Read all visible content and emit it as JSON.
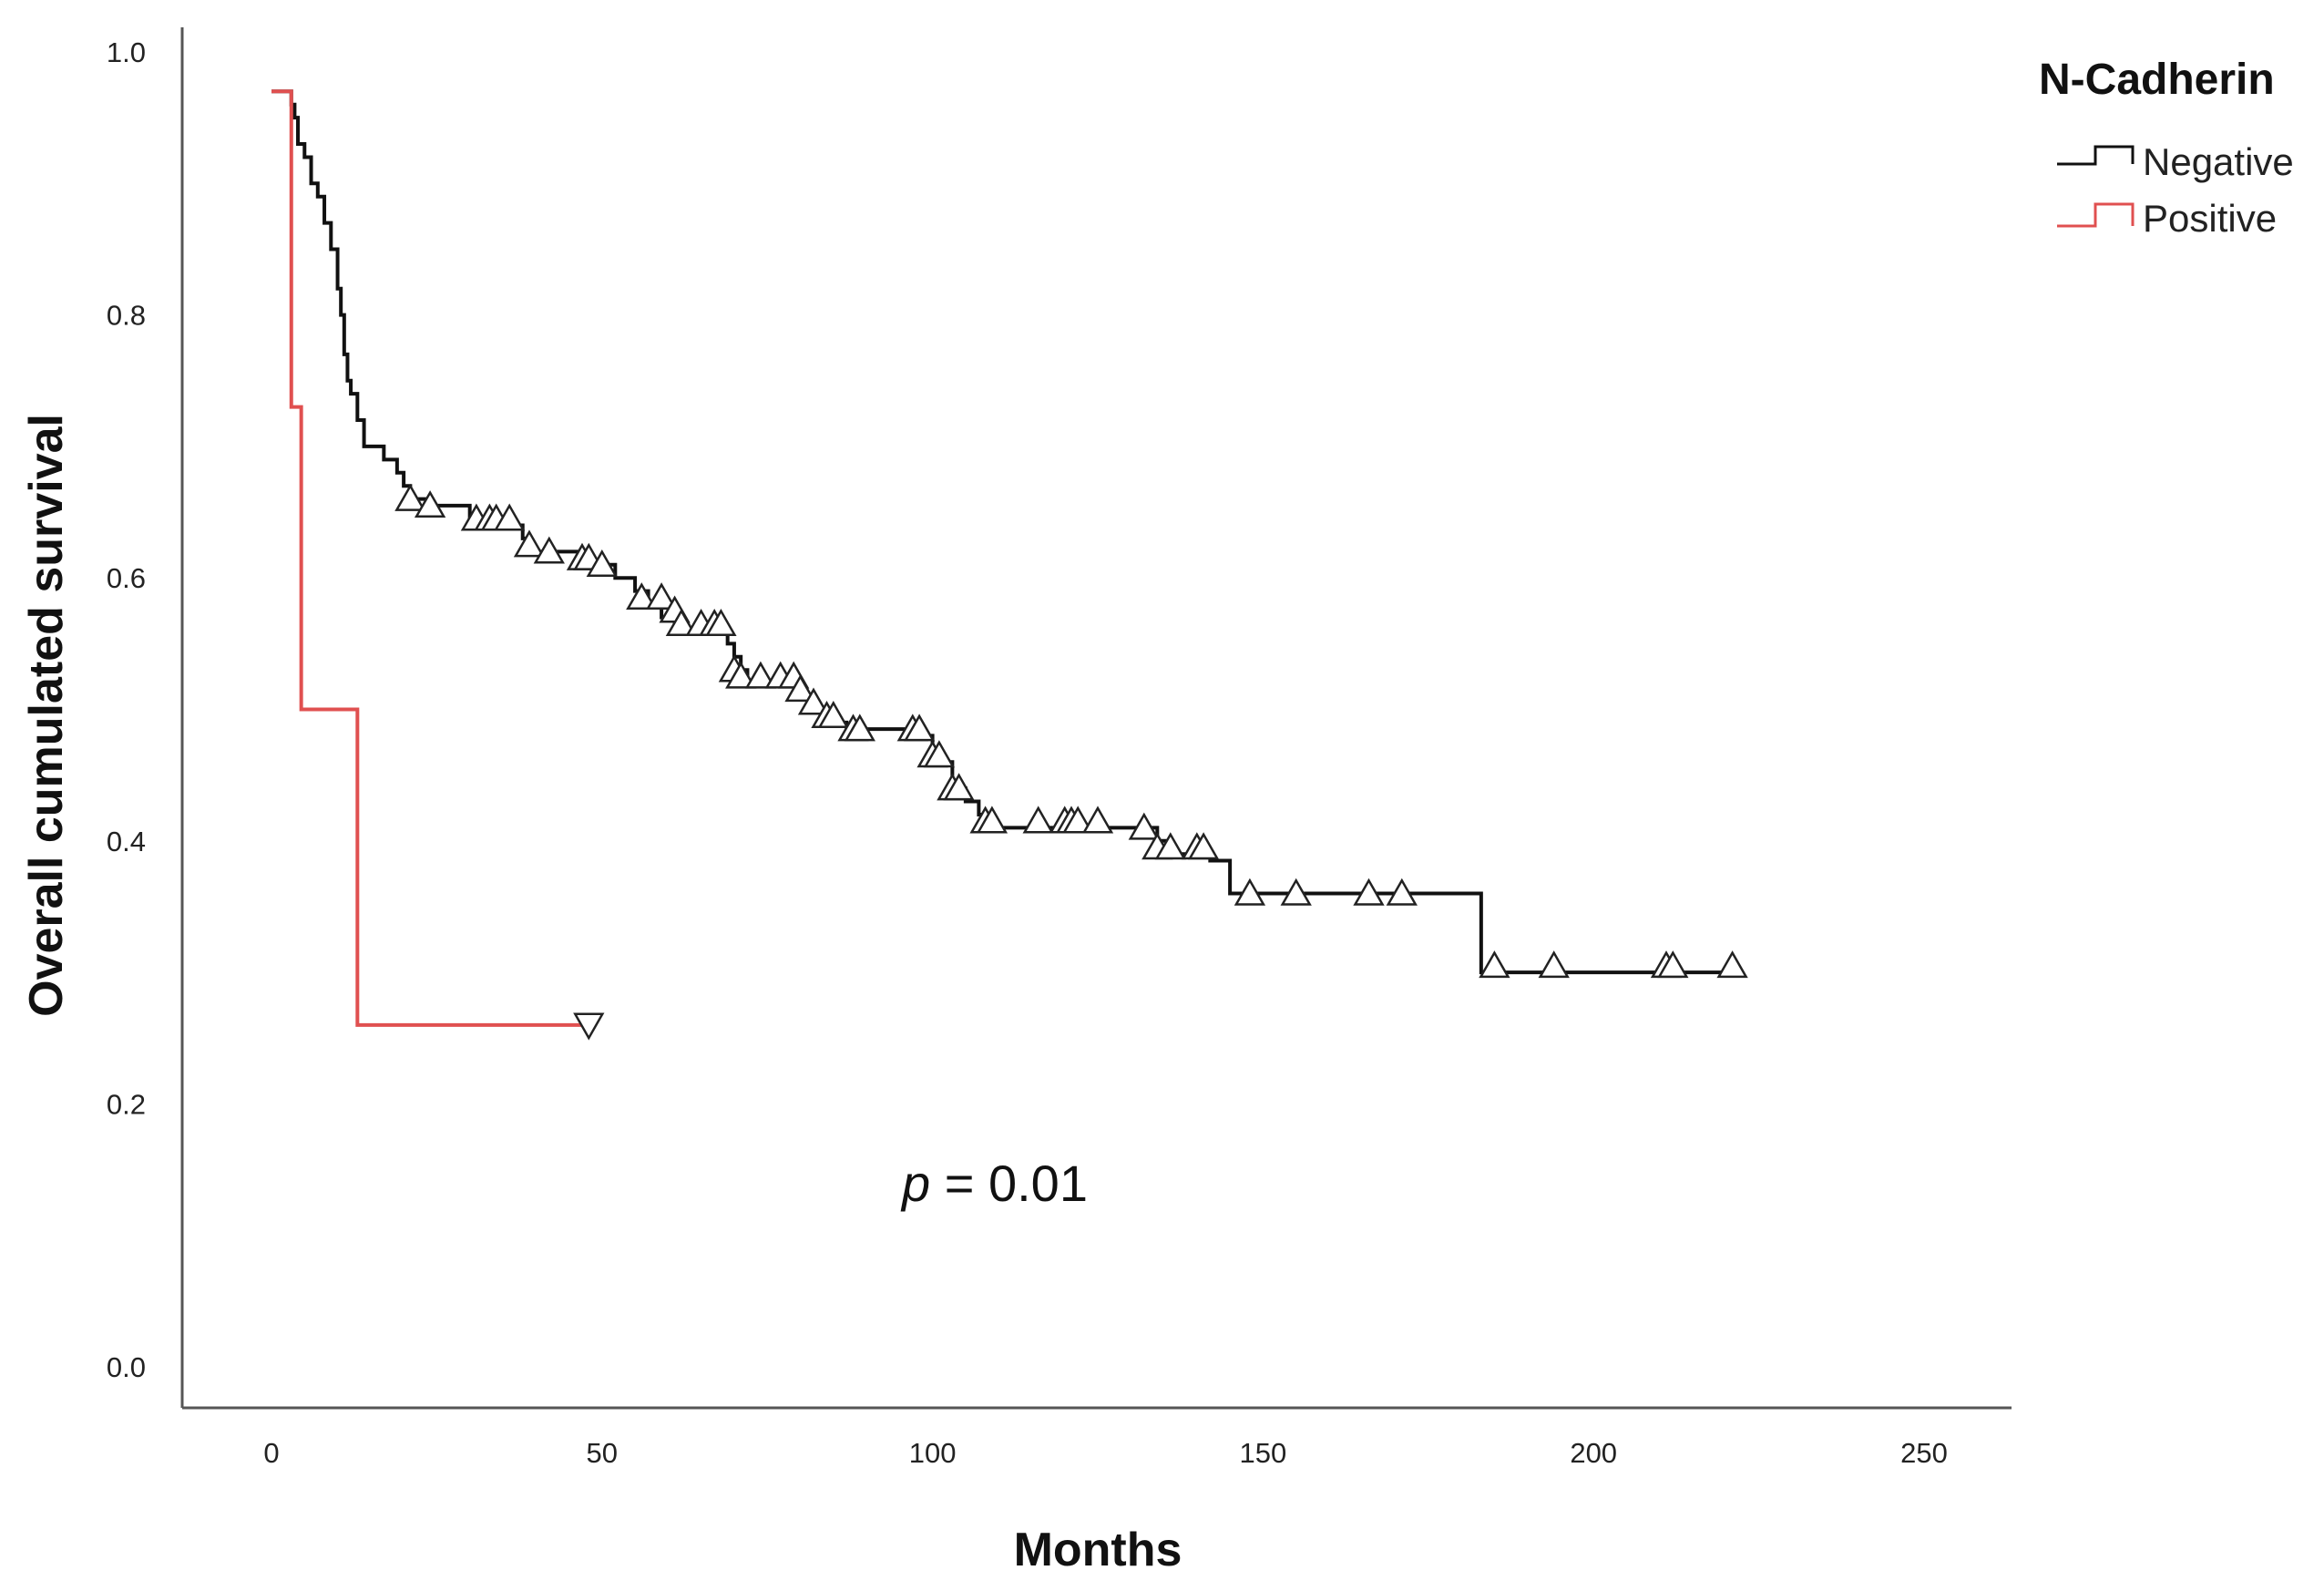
{
  "chart_data": {
    "type": "line",
    "subtype": "kaplan-meier",
    "title": "",
    "xlabel": "Months",
    "ylabel": "Overall cumulated survival",
    "xlim": [
      -13,
      264
    ],
    "ylim": [
      -0.03,
      1.02
    ],
    "xticks": [
      0,
      50,
      100,
      150,
      200,
      250
    ],
    "yticks": [
      0.0,
      0.2,
      0.4,
      0.6,
      0.8,
      1.0
    ],
    "xtick_labels": [
      "0",
      "50",
      "100",
      "150",
      "200",
      "250"
    ],
    "ytick_labels": [
      "0.0",
      "0.2",
      "0.4",
      "0.6",
      "0.8",
      "1.0"
    ],
    "grid": false,
    "legend": {
      "title": "N-Cadherin",
      "placement": "top-right-outside",
      "entries": [
        "Negative",
        "Positive"
      ]
    },
    "annotation": {
      "italic": "p",
      "text": " = 0.01"
    },
    "series": [
      {
        "name": "Negative",
        "color": "#111111",
        "censor_marker": "triangle-up",
        "steps": [
          [
            0,
            0.97
          ],
          [
            3,
            0.96
          ],
          [
            3.5,
            0.95
          ],
          [
            4,
            0.93
          ],
          [
            5,
            0.92
          ],
          [
            6,
            0.9
          ],
          [
            7,
            0.89
          ],
          [
            8,
            0.87
          ],
          [
            9,
            0.85
          ],
          [
            10,
            0.82
          ],
          [
            10.5,
            0.8
          ],
          [
            11,
            0.77
          ],
          [
            11.5,
            0.75
          ],
          [
            12,
            0.74
          ],
          [
            13,
            0.72
          ],
          [
            14,
            0.7
          ],
          [
            17,
            0.69
          ],
          [
            19,
            0.68
          ],
          [
            20,
            0.67
          ],
          [
            21,
            0.66
          ],
          [
            24,
            0.655
          ],
          [
            30,
            0.645
          ],
          [
            33,
            0.64
          ],
          [
            38,
            0.63
          ],
          [
            39,
            0.62
          ],
          [
            48,
            0.61
          ],
          [
            52,
            0.6
          ],
          [
            55,
            0.59
          ],
          [
            57,
            0.58
          ],
          [
            59,
            0.57
          ],
          [
            61,
            0.56
          ],
          [
            69,
            0.55
          ],
          [
            70,
            0.54
          ],
          [
            71,
            0.53
          ],
          [
            72,
            0.52
          ],
          [
            80,
            0.51
          ],
          [
            82,
            0.5
          ],
          [
            84,
            0.49
          ],
          [
            87,
            0.485
          ],
          [
            98,
            0.48
          ],
          [
            100,
            0.46
          ],
          [
            103,
            0.44
          ],
          [
            105,
            0.43
          ],
          [
            107,
            0.42
          ],
          [
            108,
            0.41
          ],
          [
            134,
            0.4
          ],
          [
            136,
            0.39
          ],
          [
            142,
            0.385
          ],
          [
            145,
            0.36
          ],
          [
            183,
            0.3
          ],
          [
            222,
            0.3
          ]
        ],
        "censored": [
          [
            21,
            0.66
          ],
          [
            24,
            0.655
          ],
          [
            31,
            0.645
          ],
          [
            33,
            0.645
          ],
          [
            34,
            0.645
          ],
          [
            36,
            0.645
          ],
          [
            39,
            0.625
          ],
          [
            42,
            0.62
          ],
          [
            47,
            0.615
          ],
          [
            48,
            0.615
          ],
          [
            50,
            0.61
          ],
          [
            56,
            0.585
          ],
          [
            59,
            0.585
          ],
          [
            61,
            0.575
          ],
          [
            62,
            0.565
          ],
          [
            65,
            0.565
          ],
          [
            67,
            0.565
          ],
          [
            68,
            0.565
          ],
          [
            70,
            0.53
          ],
          [
            71,
            0.525
          ],
          [
            74,
            0.525
          ],
          [
            77,
            0.525
          ],
          [
            79,
            0.525
          ],
          [
            80,
            0.515
          ],
          [
            82,
            0.505
          ],
          [
            84,
            0.495
          ],
          [
            85,
            0.495
          ],
          [
            88,
            0.485
          ],
          [
            89,
            0.485
          ],
          [
            97,
            0.485
          ],
          [
            98,
            0.485
          ],
          [
            100,
            0.465
          ],
          [
            101,
            0.465
          ],
          [
            103,
            0.44
          ],
          [
            104,
            0.44
          ],
          [
            108,
            0.415
          ],
          [
            109,
            0.415
          ],
          [
            116,
            0.415
          ],
          [
            120,
            0.415
          ],
          [
            121,
            0.415
          ],
          [
            122,
            0.415
          ],
          [
            125,
            0.415
          ],
          [
            132,
            0.41
          ],
          [
            134,
            0.395
          ],
          [
            136,
            0.395
          ],
          [
            140,
            0.395
          ],
          [
            141,
            0.395
          ],
          [
            148,
            0.36
          ],
          [
            155,
            0.36
          ],
          [
            166,
            0.36
          ],
          [
            171,
            0.36
          ],
          [
            185,
            0.305
          ],
          [
            194,
            0.305
          ],
          [
            211,
            0.305
          ],
          [
            212,
            0.305
          ],
          [
            221,
            0.305
          ]
        ]
      },
      {
        "name": "Positive",
        "color": "#e05050",
        "censor_marker": "triangle-down",
        "steps": [
          [
            0,
            0.97
          ],
          [
            3,
            0.73
          ],
          [
            4.5,
            0.5
          ],
          [
            13,
            0.26
          ],
          [
            48,
            0.26
          ]
        ],
        "censored": [
          [
            48,
            0.26
          ]
        ]
      }
    ]
  }
}
